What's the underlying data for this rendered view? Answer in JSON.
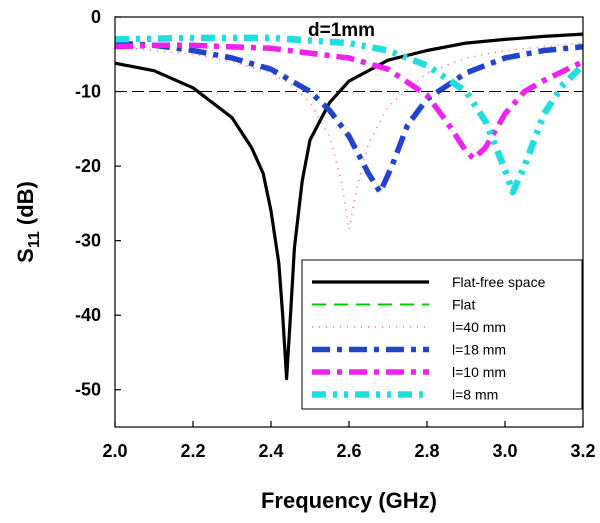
{
  "chart_data": {
    "type": "line",
    "xlabel": "Frequency (GHz)",
    "ylabel_main": "S",
    "ylabel_sub": "11",
    "ylabel_tail": " (dB)",
    "annotation": "d=1mm",
    "xlim": [
      2.0,
      3.2
    ],
    "ylim": [
      -55,
      0
    ],
    "xticks": [
      2.0,
      2.2,
      2.4,
      2.6,
      2.8,
      3.0,
      3.2
    ],
    "xtick_labels": [
      "2.0",
      "2.2",
      "2.4",
      "2.6",
      "2.8",
      "3.0",
      "3.2"
    ],
    "yticks": [
      0,
      -10,
      -20,
      -30,
      -40,
      -50
    ],
    "ytick_labels": [
      "0",
      "-10",
      "-20",
      "-30",
      "-40",
      "-50"
    ],
    "reference_line": -10,
    "legend_position": "bottom-right",
    "series": [
      {
        "name": "Flat-free space",
        "color": "#000000",
        "style": "solid",
        "points": [
          [
            2.0,
            -6.2
          ],
          [
            2.1,
            -7.2
          ],
          [
            2.2,
            -9.5
          ],
          [
            2.3,
            -13.5
          ],
          [
            2.35,
            -17.5
          ],
          [
            2.38,
            -21
          ],
          [
            2.4,
            -26
          ],
          [
            2.42,
            -33
          ],
          [
            2.43,
            -40
          ],
          [
            2.44,
            -48.5
          ],
          [
            2.45,
            -40
          ],
          [
            2.46,
            -31
          ],
          [
            2.48,
            -22
          ],
          [
            2.5,
            -16.5
          ],
          [
            2.55,
            -11.5
          ],
          [
            2.6,
            -8.6
          ],
          [
            2.7,
            -5.8
          ],
          [
            2.8,
            -4.5
          ],
          [
            2.9,
            -3.5
          ],
          [
            3.0,
            -3.0
          ],
          [
            3.1,
            -2.6
          ],
          [
            3.2,
            -2.3
          ]
        ]
      },
      {
        "name": "Flat",
        "color": "#00cc00",
        "style": "dash",
        "points": []
      },
      {
        "name": "l=40 mm",
        "color": "#ff6677",
        "style": "dot",
        "points": [
          [
            2.0,
            -4.0
          ],
          [
            2.1,
            -4.5
          ],
          [
            2.2,
            -5.0
          ],
          [
            2.3,
            -6.0
          ],
          [
            2.4,
            -7.5
          ],
          [
            2.45,
            -9.0
          ],
          [
            2.5,
            -11.5
          ],
          [
            2.55,
            -16
          ],
          [
            2.58,
            -22
          ],
          [
            2.6,
            -28.5
          ],
          [
            2.62,
            -23
          ],
          [
            2.65,
            -17
          ],
          [
            2.7,
            -12
          ],
          [
            2.8,
            -7.5
          ],
          [
            2.9,
            -5.5
          ],
          [
            3.0,
            -4.5
          ],
          [
            3.1,
            -4.0
          ],
          [
            3.2,
            -3.5
          ]
        ]
      },
      {
        "name": "l=18 mm",
        "color": "#2244cc",
        "style": "dashdot",
        "points": [
          [
            2.0,
            -3.5
          ],
          [
            2.1,
            -3.8
          ],
          [
            2.2,
            -4.5
          ],
          [
            2.3,
            -5.5
          ],
          [
            2.4,
            -7.0
          ],
          [
            2.5,
            -10.0
          ],
          [
            2.55,
            -12.5
          ],
          [
            2.6,
            -16
          ],
          [
            2.65,
            -21
          ],
          [
            2.68,
            -23.5
          ],
          [
            2.71,
            -20
          ],
          [
            2.75,
            -14.5
          ],
          [
            2.8,
            -11
          ],
          [
            2.9,
            -7.5
          ],
          [
            3.0,
            -5.5
          ],
          [
            3.1,
            -4.5
          ],
          [
            3.2,
            -4.0
          ]
        ]
      },
      {
        "name": "l=10 mm",
        "color": "#ee22ee",
        "style": "dashdot",
        "points": [
          [
            2.0,
            -4.0
          ],
          [
            2.1,
            -3.8
          ],
          [
            2.2,
            -3.8
          ],
          [
            2.4,
            -4.2
          ],
          [
            2.6,
            -5.5
          ],
          [
            2.7,
            -7.0
          ],
          [
            2.8,
            -10.5
          ],
          [
            2.85,
            -14
          ],
          [
            2.9,
            -18
          ],
          [
            2.92,
            -19
          ],
          [
            2.95,
            -17.5
          ],
          [
            3.0,
            -13
          ],
          [
            3.05,
            -10
          ],
          [
            3.1,
            -8.5
          ],
          [
            3.2,
            -6.0
          ]
        ]
      },
      {
        "name": "l=8 mm",
        "color": "#22dddd",
        "style": "dashdotdot",
        "points": [
          [
            2.0,
            -3.0
          ],
          [
            2.2,
            -2.8
          ],
          [
            2.4,
            -2.8
          ],
          [
            2.6,
            -3.5
          ],
          [
            2.7,
            -4.5
          ],
          [
            2.8,
            -6.5
          ],
          [
            2.9,
            -10
          ],
          [
            2.95,
            -14
          ],
          [
            3.0,
            -20.5
          ],
          [
            3.02,
            -23.5
          ],
          [
            3.05,
            -20
          ],
          [
            3.1,
            -13
          ],
          [
            3.15,
            -9
          ],
          [
            3.2,
            -6.5
          ]
        ]
      }
    ]
  }
}
